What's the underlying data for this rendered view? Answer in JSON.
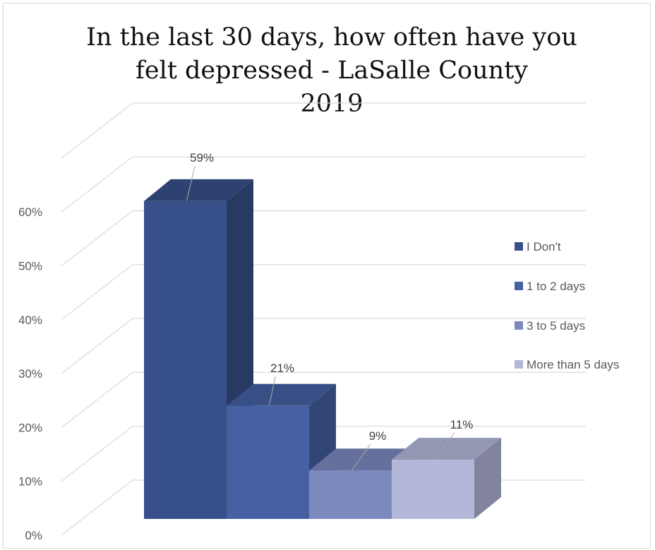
{
  "chart_data": {
    "type": "bar",
    "title_lines": [
      "In the last 30 days, how often have you",
      "felt depressed - LaSalle County",
      "2019"
    ],
    "categories": [
      "I Don't",
      "1 to 2 days",
      "3 to 5 days",
      "More than 5 days"
    ],
    "values": [
      59,
      21,
      9,
      11
    ],
    "data_labels": [
      "59%",
      "21%",
      "9%",
      "11%"
    ],
    "y_ticks": [
      "0%",
      "10%",
      "20%",
      "30%",
      "40%",
      "50%",
      "60%"
    ],
    "ylim": [
      0,
      60
    ],
    "unit": "%",
    "three_d": true,
    "grid": true,
    "legend_position": "right",
    "colors": [
      "#38508a",
      "#4561a3",
      "#7c89bf",
      "#b3b8d8"
    ]
  }
}
